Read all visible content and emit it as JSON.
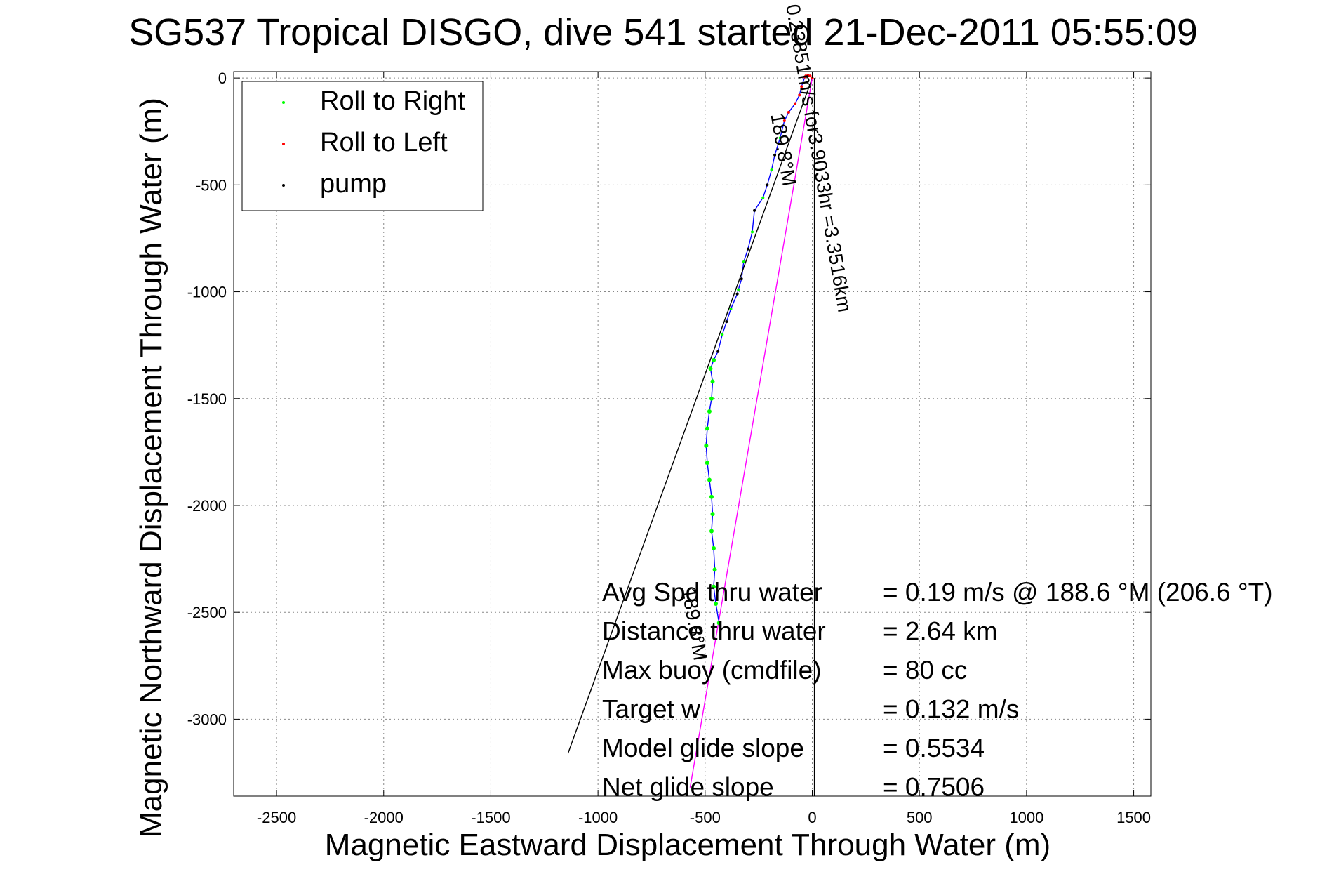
{
  "chart_data": {
    "type": "line",
    "title": "SG537 Tropical DISGO, dive 541 started 21-Dec-2011 05:55:09",
    "xlabel": "Magnetic Eastward Displacement Through Water (m)",
    "ylabel": "Magnetic Northward Displacement Through Water (m)",
    "xlim": [
      -2700,
      1580
    ],
    "ylim": [
      -3360,
      30
    ],
    "x_ticks": [
      -2500,
      -2000,
      -1500,
      -1000,
      -500,
      0,
      500,
      1000,
      1500
    ],
    "y_ticks": [
      0,
      -500,
      -1000,
      -1500,
      -2000,
      -2500,
      -3000
    ],
    "grid": true,
    "legend_position": "top-left",
    "legend": [
      {
        "label": "Roll to Right",
        "color": "#00ff00"
      },
      {
        "label": "Roll to Left",
        "color": "#ff0000"
      },
      {
        "label": "pump",
        "color": "#000000"
      }
    ],
    "series": [
      {
        "color": "#0000ff",
        "x": [
          0,
          -10,
          -20,
          -30,
          -35,
          -50,
          -60,
          -80,
          -110,
          -130,
          -150,
          -175,
          -190,
          -210,
          -230,
          -270,
          -280,
          -300,
          -320,
          -330,
          -345,
          -350,
          -380,
          -400,
          -420,
          -440,
          -460,
          -475,
          -465,
          -470,
          -480,
          -490,
          -495,
          -490,
          -480,
          -470,
          -465,
          -470,
          -460,
          -455,
          -460,
          -450,
          -435
        ],
        "y": [
          0,
          10,
          12,
          10,
          5,
          -40,
          -80,
          -120,
          -160,
          -200,
          -280,
          -360,
          -430,
          -500,
          -560,
          -620,
          -720,
          -800,
          -860,
          -940,
          -990,
          -1010,
          -1080,
          -1140,
          -1200,
          -1280,
          -1320,
          -1360,
          -1420,
          -1500,
          -1560,
          -1640,
          -1720,
          -1800,
          -1880,
          -1960,
          -2040,
          -2120,
          -2200,
          -2300,
          -2380,
          -2460,
          -2550
        ]
      },
      {
        "color": "#000000",
        "x": [
          0,
          -1140
        ],
        "y": [
          0,
          -3160
        ]
      },
      {
        "color": "#ff00ff",
        "x": [
          0,
          -570
        ],
        "y": [
          0,
          -3320
        ]
      },
      {
        "color": "#000000",
        "x": [
          10,
          10
        ],
        "y": [
          0,
          -3360
        ]
      }
    ],
    "line_labels": [
      {
        "text": "0.23851m/s for3.9033hr =3.3516km",
        "x": 0,
        "y": -380,
        "angle": 80.3
      },
      {
        "text": "189.8°M",
        "x": -165,
        "y": -340,
        "angle": 80.3
      },
      {
        "text": "189.8°M",
        "x": -580,
        "y": -2560,
        "angle": 80.3
      }
    ],
    "annotations": {
      "labels": [
        "Avg Spd thru water",
        "Distance thru water",
        "Max buoy (cmdfile)",
        "Target w",
        "Model glide slope",
        "Net glide slope"
      ],
      "values": [
        "=  0.19 m/s @ 188.6 °M (206.6 °T)",
        "=  2.64 km",
        "= 80 cc",
        "= 0.132 m/s",
        "= 0.5534",
        "= 0.7506"
      ]
    }
  }
}
